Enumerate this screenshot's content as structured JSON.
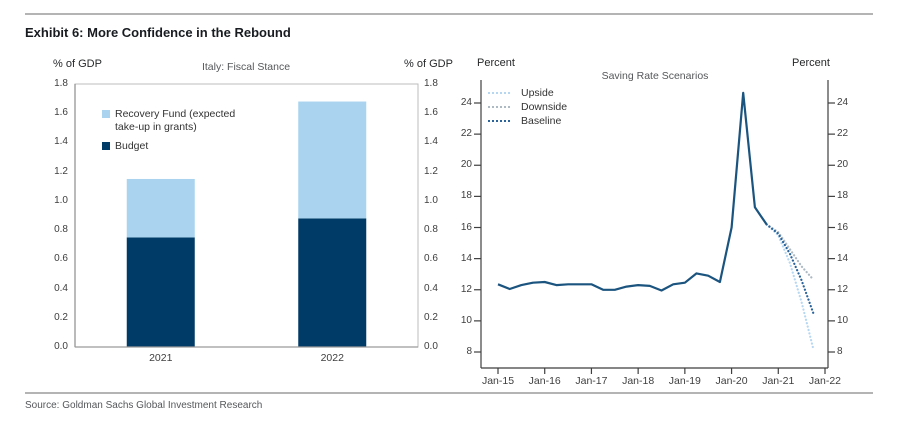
{
  "page": {
    "exhibit_title": "Exhibit 6: More Confidence in the Rebound",
    "source": "Source: Goldman Sachs Global Investment Research"
  },
  "chart_data": [
    {
      "type": "bar",
      "stacked": true,
      "title": "Italy: Fiscal Stance",
      "unit_label_left": "% of GDP",
      "unit_label_right": "% of GDP",
      "categories": [
        "2021",
        "2022"
      ],
      "series": [
        {
          "name": "Budget",
          "color": "#003a66",
          "values": [
            0.75,
            0.88
          ]
        },
        {
          "name": "Recovery Fund (expected take-up in grants)",
          "color": "#a9d3ef",
          "values": [
            0.4,
            0.8
          ]
        }
      ],
      "stack_totals": [
        1.15,
        1.68
      ],
      "ylim": [
        0,
        1.8
      ],
      "yticks": [
        "1.8",
        "1.6",
        "1.4",
        "1.2",
        "1.0",
        "0.8",
        "0.6",
        "0.4",
        "0.2",
        "0.0"
      ],
      "grid": false,
      "legend_position": "top-left-inside",
      "legend": [
        {
          "label": "Recovery Fund (expected take-up in grants)",
          "color": "#a9d3ef"
        },
        {
          "label": "Budget",
          "color": "#003a66"
        }
      ]
    },
    {
      "type": "line",
      "title": "Saving Rate Scenarios",
      "unit_label_left": "Percent",
      "unit_label_right": "Percent",
      "x_note": "quarterly data, x in years since Jan-2015",
      "x_tick_labels": [
        "Jan-15",
        "Jan-16",
        "Jan-17",
        "Jan-18",
        "Jan-19",
        "Jan-20",
        "Jan-21",
        "Jan-22"
      ],
      "yticks": [
        "24",
        "22",
        "20",
        "18",
        "16",
        "14",
        "12",
        "10",
        "8"
      ],
      "ylim": [
        8,
        24
      ],
      "grid": false,
      "legend_position": "top-left-inside",
      "legend": [
        {
          "label": "Upside",
          "color": "#b6d7f1"
        },
        {
          "label": "Downside",
          "color": "#adbac4"
        },
        {
          "label": "Baseline",
          "color": "#2a649b"
        }
      ],
      "series": [
        {
          "name": "Upside",
          "style": "dotted",
          "color": "#b6d7f1",
          "x_start": 5.75,
          "x_step": 0.25,
          "values": [
            16.2,
            15.5,
            13.7,
            11.2,
            8.2
          ]
        },
        {
          "name": "Downside",
          "style": "dotted",
          "color": "#adbac4",
          "x_start": 5.75,
          "x_step": 0.25,
          "values": [
            16.2,
            15.7,
            14.6,
            13.5,
            12.65
          ]
        },
        {
          "name": "Baseline",
          "style": "dotted",
          "color": "#2a649b",
          "x_start": 5.75,
          "x_step": 0.25,
          "values": [
            16.2,
            15.6,
            14.3,
            12.6,
            10.5
          ]
        },
        {
          "name": "History",
          "style": "solid",
          "color": "#1b547f",
          "x_start": 0,
          "x_step": 0.25,
          "values": [
            12.35,
            12.05,
            12.3,
            12.45,
            12.5,
            12.3,
            12.35,
            12.35,
            12.35,
            12.0,
            12.0,
            12.2,
            12.3,
            12.25,
            11.95,
            12.35,
            12.45,
            13.05,
            12.9,
            12.5,
            16.0,
            24.65,
            17.3,
            16.2
          ]
        }
      ]
    }
  ]
}
